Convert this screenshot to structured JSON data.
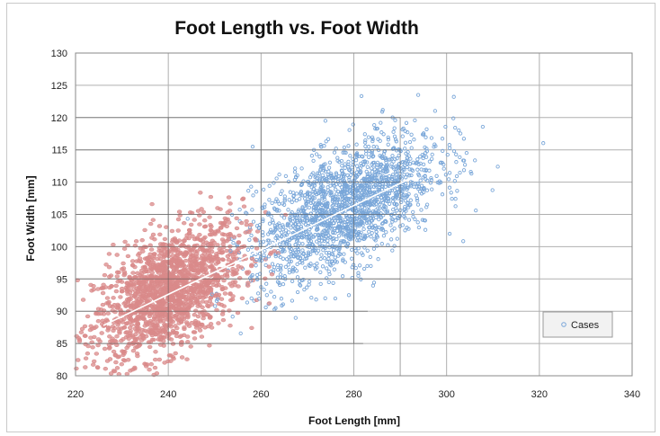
{
  "chart_data": {
    "type": "scatter",
    "title": "Foot  Length vs. Foot Width",
    "xlabel": "Foot Length [mm]",
    "ylabel": "Foot Width [mm]",
    "xlim": [
      220,
      340
    ],
    "ylim": [
      80,
      130
    ],
    "x_ticks": [
      220,
      240,
      260,
      280,
      300,
      320,
      340
    ],
    "y_ticks": [
      80,
      85,
      90,
      95,
      100,
      105,
      110,
      115,
      120,
      125,
      130
    ],
    "grid": true,
    "legend": {
      "position": "right",
      "entries": [
        "Cases"
      ]
    },
    "colors": {
      "group_a": "#d98a8a",
      "group_b": "#7aa7d9",
      "trend": "#ffffff",
      "grid": "#b0b0b0",
      "dense_grid": "#555555"
    },
    "trend_line": {
      "x": [
        226,
        292
      ],
      "y": [
        87.8,
        110.5
      ]
    },
    "series": [
      {
        "name": "Cases",
        "clusters": [
          {
            "color": "#d98a8a",
            "center": [
              240,
              93
            ],
            "spread": [
              8,
              4.5
            ],
            "count": 1700,
            "slope": 0.33
          },
          {
            "color": "#7aa7d9",
            "center": [
              278,
              106
            ],
            "spread": [
              10,
              4.5
            ],
            "count": 1900,
            "slope": 0.33
          }
        ]
      }
    ]
  }
}
